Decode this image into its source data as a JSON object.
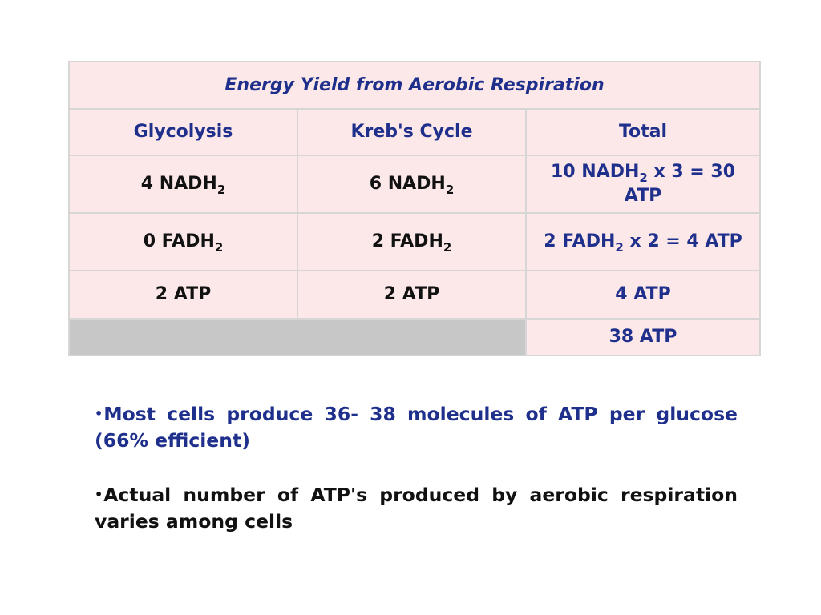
{
  "table": {
    "title": "Energy Yield from Aerobic Respiration",
    "headers": [
      "Glycolysis",
      "Kreb's Cycle",
      "Total"
    ],
    "rows": [
      {
        "glycolysis": {
          "pre": "4 NADH",
          "sub": "2",
          "post": ""
        },
        "krebs": {
          "pre": "6 NADH",
          "sub": "2",
          "post": ""
        },
        "total": {
          "pre": "10 NADH",
          "sub": "2",
          "post": " x 3 = 30 ATP"
        }
      },
      {
        "glycolysis": {
          "pre": "0 FADH",
          "sub": "2",
          "post": ""
        },
        "krebs": {
          "pre": "2 FADH",
          "sub": "2",
          "post": ""
        },
        "total": {
          "pre": "2 FADH",
          "sub": "2",
          "post": " x 2 = 4 ATP"
        }
      },
      {
        "glycolysis": {
          "pre": "2 ATP",
          "sub": "",
          "post": ""
        },
        "krebs": {
          "pre": "2 ATP",
          "sub": "",
          "post": ""
        },
        "total": {
          "pre": "4 ATP",
          "sub": "",
          "post": ""
        }
      }
    ],
    "grand_total": "38 ATP"
  },
  "notes": {
    "bullet": "•",
    "note1": "Most cells produce 36- 38 molecules of ATP per glucose (66% efficient)",
    "note2": "Actual number of ATP's produced by aerobic respiration varies among cells"
  },
  "colors": {
    "cell_bg": "#fce8e8",
    "filler_bg": "#c7c7c7",
    "border": "#d6d6d6",
    "accent_text": "#1f2f8c",
    "body_text": "#111111"
  }
}
